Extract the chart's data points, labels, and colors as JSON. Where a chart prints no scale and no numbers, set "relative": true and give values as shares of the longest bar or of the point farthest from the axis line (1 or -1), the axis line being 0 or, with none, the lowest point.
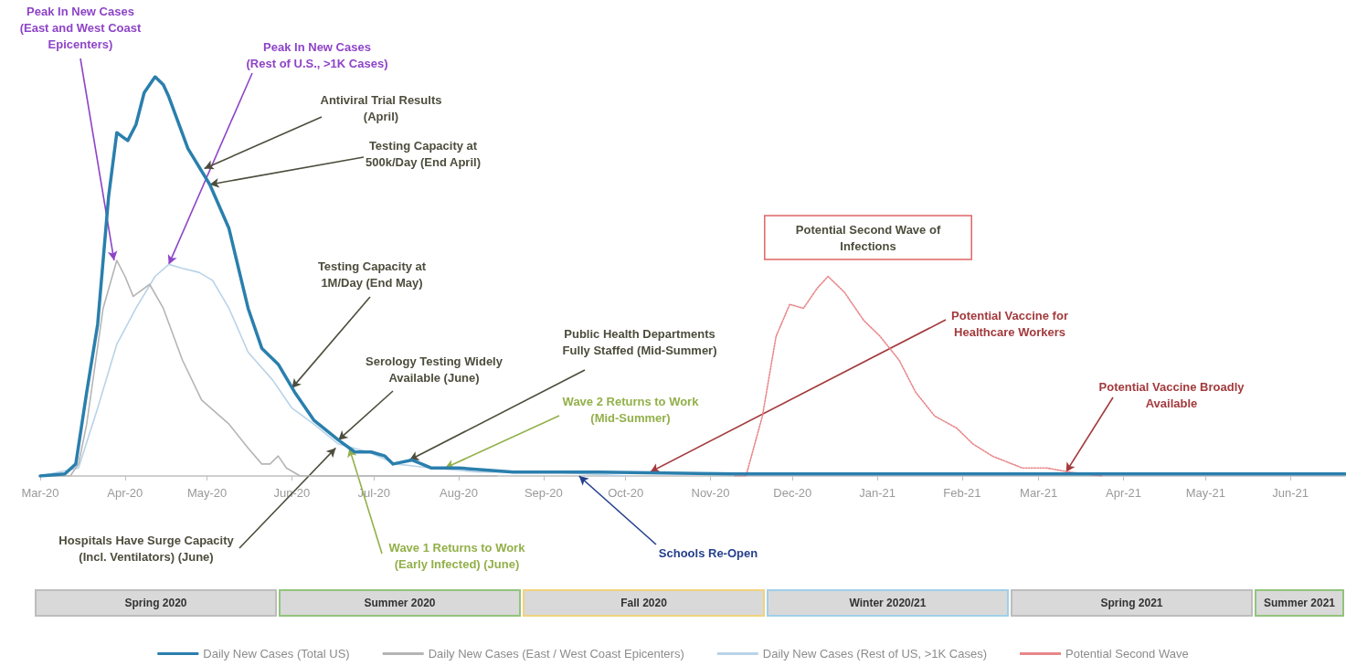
{
  "chart_data": {
    "type": "line",
    "relative": true,
    "grid": false,
    "legend": "bottom",
    "marker": "none",
    "line_style": "solid",
    "xlim": [
      "2020-03-01",
      "2021-06-21"
    ],
    "xticks": [
      {
        "value": "2020-03",
        "label": "Mar-20"
      },
      {
        "value": "2020-04",
        "label": "Apr-20"
      },
      {
        "value": "2020-05",
        "label": "May-20"
      },
      {
        "value": "2020-06",
        "label": "Jun-20"
      },
      {
        "value": "2020-07",
        "label": "Jul-20"
      },
      {
        "value": "2020-08",
        "label": "Aug-20"
      },
      {
        "value": "2020-09",
        "label": "Sep-20"
      },
      {
        "value": "2020-10",
        "label": "Oct-20"
      },
      {
        "value": "2020-11",
        "label": "Nov-20"
      },
      {
        "value": "2020-12",
        "label": "Dec-20"
      },
      {
        "value": "2021-01",
        "label": "Jan-21"
      },
      {
        "value": "2021-02",
        "label": "Feb-21"
      },
      {
        "value": "2021-03",
        "label": "Mar-21"
      },
      {
        "value": "2021-04",
        "label": "Apr-21"
      },
      {
        "value": "2021-05",
        "label": "May-21"
      },
      {
        "value": "2021-06",
        "label": "Jun-21"
      }
    ],
    "series": [
      {
        "name": "Daily New Cases (Total US)",
        "color": "#2a7fad",
        "x": [
          "2020-03-01",
          "2020-03-10",
          "2020-03-14",
          "2020-03-18",
          "2020-03-22",
          "2020-03-26",
          "2020-03-29",
          "2020-03-31",
          "2020-04-02",
          "2020-04-05",
          "2020-04-08",
          "2020-04-12",
          "2020-04-15",
          "2020-04-17",
          "2020-04-24",
          "2020-05-02",
          "2020-05-09",
          "2020-05-16",
          "2020-05-21",
          "2020-05-27",
          "2020-06-02",
          "2020-06-09",
          "2020-06-18",
          "2020-06-24",
          "2020-06-30",
          "2020-07-05",
          "2020-07-08",
          "2020-07-15",
          "2020-07-22",
          "2020-08-01",
          "2020-08-21",
          "2020-09-21",
          "2020-11-10",
          "2021-06-21"
        ],
        "values": [
          0,
          0.005,
          0.03,
          0.21,
          0.38,
          0.7,
          0.86,
          0.85,
          0.84,
          0.88,
          0.96,
          1,
          0.98,
          0.95,
          0.82,
          0.73,
          0.62,
          0.42,
          0.32,
          0.28,
          0.21,
          0.14,
          0.09,
          0.06,
          0.06,
          0.05,
          0.03,
          0.04,
          0.02,
          0.02,
          0.01,
          0.01,
          0.005,
          0.005
        ]
      },
      {
        "name": "Daily New Cases (East / West Coast Epicenters)",
        "color": "#b5b5b5",
        "x": [
          "2020-03-01",
          "2020-03-12",
          "2020-03-15",
          "2020-03-18",
          "2020-03-24",
          "2020-03-29",
          "2020-04-01",
          "2020-04-04",
          "2020-04-10",
          "2020-04-15",
          "2020-04-22",
          "2020-04-29",
          "2020-05-09",
          "2020-05-16",
          "2020-05-21",
          "2020-05-24",
          "2020-05-27",
          "2020-05-30",
          "2020-06-04",
          "2020-08-15"
        ],
        "values": [
          0,
          0,
          0.03,
          0.13,
          0.42,
          0.54,
          0.5,
          0.45,
          0.48,
          0.42,
          0.29,
          0.19,
          0.13,
          0.07,
          0.03,
          0.03,
          0.05,
          0.02,
          0,
          0
        ]
      },
      {
        "name": "Daily New Cases (Rest of US, >1K Cases)",
        "color": "#b9d3e8",
        "x": [
          "2020-03-01",
          "2020-03-15",
          "2020-03-22",
          "2020-03-29",
          "2020-04-05",
          "2020-04-12",
          "2020-04-17",
          "2020-04-22",
          "2020-04-28",
          "2020-05-03",
          "2020-05-09",
          "2020-05-16",
          "2020-05-25",
          "2020-06-01",
          "2020-06-09",
          "2020-06-18",
          "2020-06-29",
          "2020-07-09",
          "2020-07-22",
          "2020-08-08",
          "2020-09-04",
          "2020-10-01"
        ],
        "values": [
          0,
          0.02,
          0.17,
          0.33,
          0.42,
          0.5,
          0.53,
          0.52,
          0.51,
          0.49,
          0.42,
          0.31,
          0.24,
          0.17,
          0.13,
          0.08,
          0.06,
          0.03,
          0.02,
          0.01,
          0.01,
          0
        ]
      },
      {
        "name": "Potential Second Wave",
        "color": "#e8878a",
        "line_style": "dotted",
        "x": [
          "2020-11-10",
          "2020-11-14",
          "2020-11-20",
          "2020-11-25",
          "2020-11-30",
          "2020-12-05",
          "2020-12-10",
          "2020-12-14",
          "2020-12-20",
          "2020-12-27",
          "2021-01-02",
          "2021-01-09",
          "2021-01-15",
          "2021-01-22",
          "2021-01-30",
          "2021-02-05",
          "2021-02-12",
          "2021-02-23",
          "2021-03-04",
          "2021-03-12",
          "2021-03-24"
        ],
        "values": [
          0,
          0,
          0.15,
          0.35,
          0.43,
          0.42,
          0.47,
          0.5,
          0.46,
          0.39,
          0.35,
          0.29,
          0.21,
          0.15,
          0.12,
          0.08,
          0.05,
          0.02,
          0.02,
          0.01,
          0
        ]
      }
    ],
    "annotations": [
      {
        "text": "Peak In New Cases\n(East and West Coast\nEpicenters)",
        "x": "2020-03-28",
        "y": 0.54
      },
      {
        "text": "Peak In New Cases\n(Rest of U.S., >1K Cases)",
        "x": "2020-04-17",
        "y": 0.53
      },
      {
        "text": "Antiviral Trial Results\n(April)",
        "x": "2020-04-30",
        "y": 0.77
      },
      {
        "text": "Testing Capacity at\n500k/Day (End April)",
        "x": "2020-05-02",
        "y": 0.73
      },
      {
        "text": "Testing Capacity at\n1M/Day (End May)",
        "x": "2020-06-01",
        "y": 0.22
      },
      {
        "text": "Serology Testing Widely\nAvailable (June)",
        "x": "2020-06-18",
        "y": 0.09
      },
      {
        "text": "Public Health Departments\nFully Staffed (Mid-Summer)",
        "x": "2020-07-14",
        "y": 0.04
      },
      {
        "text": "Wave 2 Returns to Work\n(Mid-Summer)",
        "x": "2020-07-27",
        "y": 0.02
      },
      "Potential Second Wave of\nInfections",
      {
        "text": "Potential Vaccine for\nHealthcare Workers",
        "x": "2020-10-10",
        "y": 0.01
      },
      {
        "text": "Potential Vaccine Broadly\nAvailable",
        "x": "2021-03-11",
        "y": 0.01
      },
      {
        "text": "Hospitals Have Surge Capacity\n(Incl. Ventilators) (June)",
        "x": "2020-06-17",
        "y": 0.07
      },
      {
        "text": "Wave 1 Returns to Work\n(Early Infected) (June)",
        "x": "2020-06-22",
        "y": 0.07
      },
      {
        "text": "Schools Re-Open",
        "x": "2020-09-14",
        "y": 0
      },
      "Spring 2020",
      "Summer 2020",
      "Fall 2020",
      "Winter 2020/21",
      "Spring 2021",
      "Summer 2021"
    ]
  }
}
